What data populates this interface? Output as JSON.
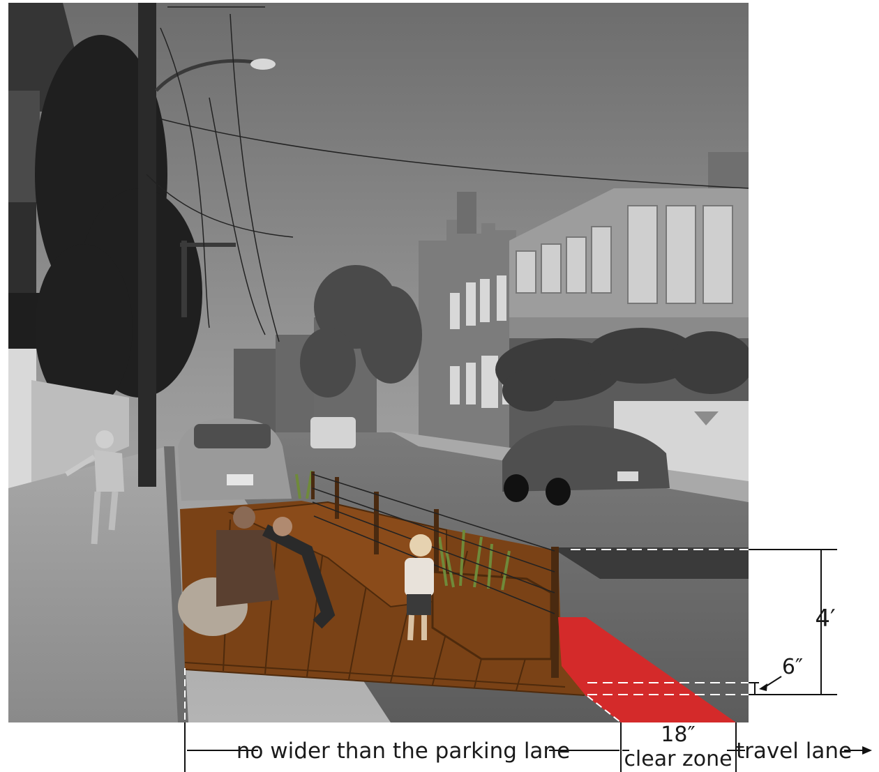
{
  "figure": {
    "photo_style": "grayscale street photo with colored parklet overlay",
    "colors": {
      "deck_wood": "#7a4216",
      "deck_wood_dark": "#4e2a0c",
      "clear_zone_red": "#d42a2a",
      "dimension_line": "#111111"
    }
  },
  "dimensions": {
    "rail_height": "4′",
    "curb_gap": "6″",
    "width_note": "no wider than the parking lane",
    "clear_zone_size": "18″",
    "clear_zone_label": "clear zone",
    "travel_lane_label": "travel lane"
  },
  "icons": {
    "arrow": "right-arrow-icon",
    "pointer": "leader-arrow-icon"
  }
}
